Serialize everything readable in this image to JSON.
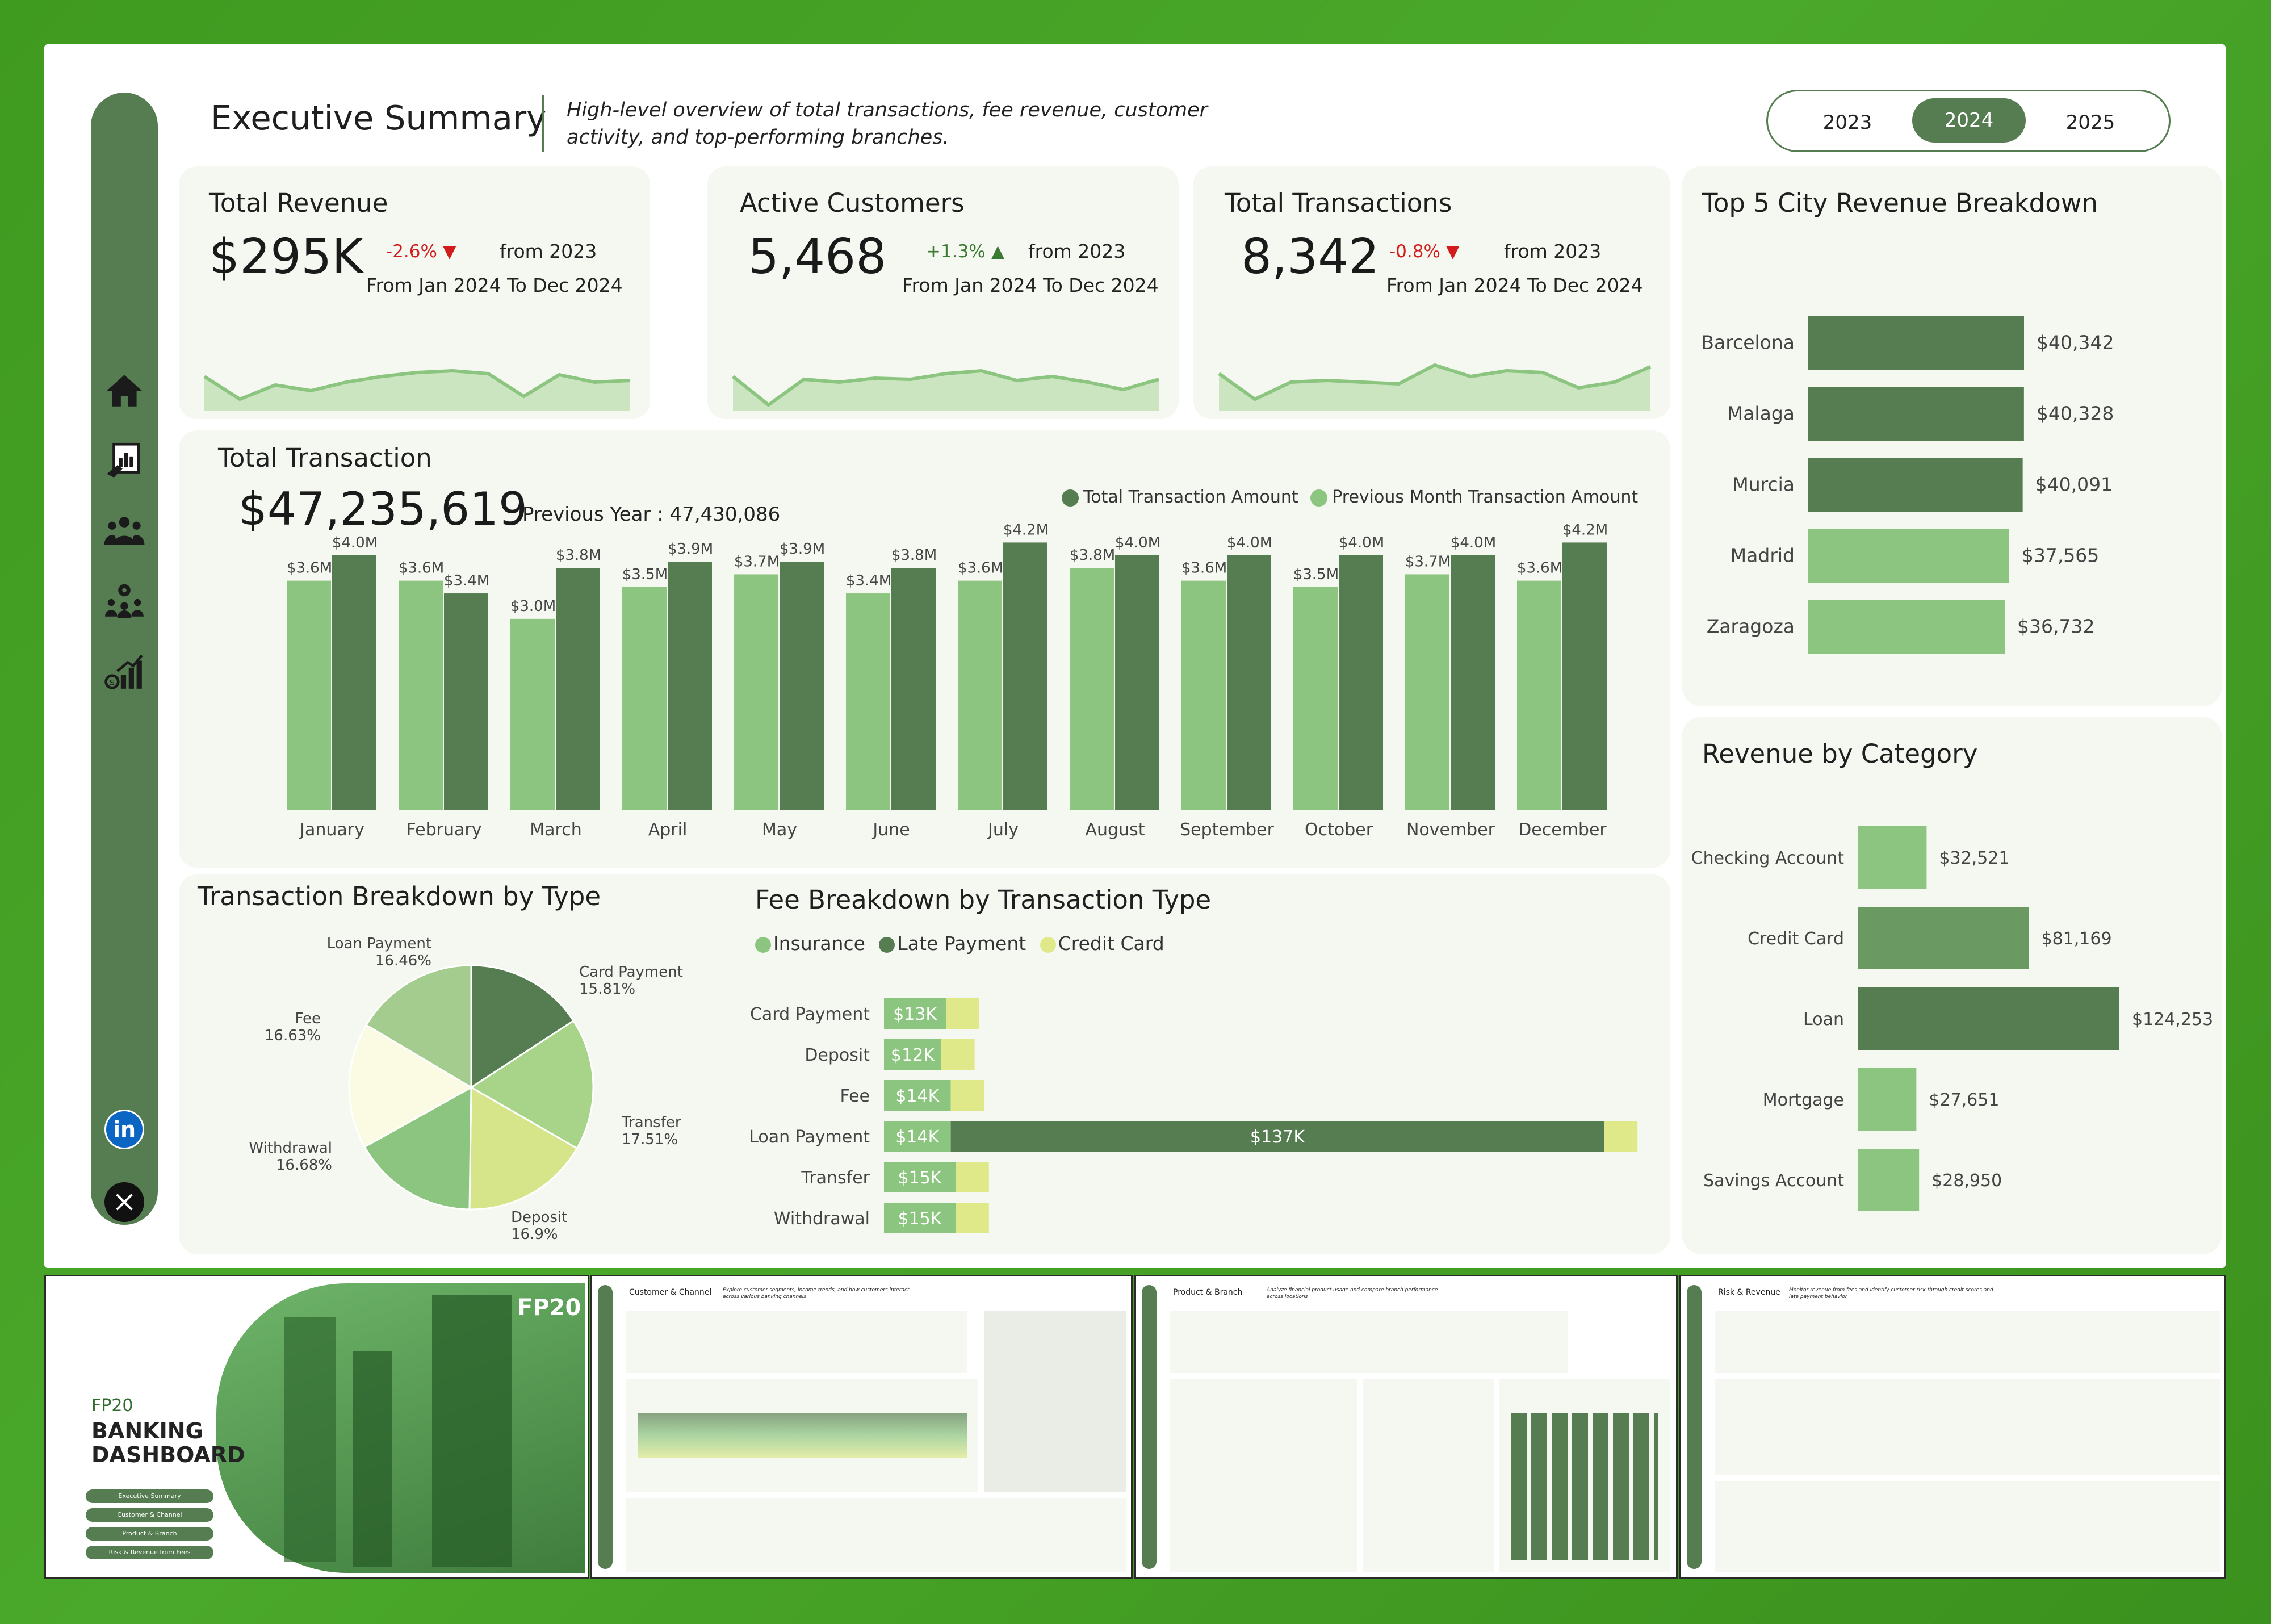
{
  "header": {
    "title": "Executive Summary",
    "subtitle": "High-level overview of total transactions, fee revenue, customer activity, and top-performing branches.",
    "years": [
      "2023",
      "2024",
      "2025"
    ],
    "selected_year": "2024"
  },
  "nav": [
    "home-icon",
    "report-icon",
    "customers-icon",
    "branches-icon",
    "risk-chart-icon",
    "linkedin-icon",
    "x-icon"
  ],
  "kpis": [
    {
      "title": "Total Revenue",
      "value": "$295K",
      "change": "-2.6%",
      "direction": "down",
      "from": "from 2023",
      "range": "From Jan 2024 To Dec 2024",
      "spark": [
        0.55,
        0.15,
        0.4,
        0.3,
        0.45,
        0.55,
        0.62,
        0.65,
        0.6,
        0.2,
        0.58,
        0.45,
        0.48
      ]
    },
    {
      "title": "Active Customers",
      "value": "5,468",
      "change": "+1.3%",
      "direction": "up",
      "from": "from 2023",
      "range": "From Jan 2024 To Dec 2024",
      "spark": [
        0.55,
        0.05,
        0.5,
        0.45,
        0.52,
        0.5,
        0.6,
        0.65,
        0.48,
        0.55,
        0.45,
        0.32,
        0.5
      ]
    },
    {
      "title": "Total Transactions",
      "value": "8,342",
      "change": "-0.8%",
      "direction": "down",
      "from": "from 2023",
      "range": "From Jan 2024 To Dec 2024",
      "spark": [
        0.6,
        0.15,
        0.45,
        0.48,
        0.45,
        0.42,
        0.75,
        0.55,
        0.65,
        0.62,
        0.35,
        0.45,
        0.72
      ]
    }
  ],
  "monthly": {
    "title": "Total Transaction",
    "total": "$47,235,619",
    "previous": "Previous Year : 47,430,086",
    "legend_current": "Total Transaction Amount",
    "legend_previous": "Previous Month Transaction Amount",
    "color_current": "#567d51",
    "color_previous": "#8cc57f"
  },
  "top_cities": {
    "title": "Top 5 City Revenue Breakdown"
  },
  "category": {
    "title": "Revenue by Category"
  },
  "type_breakdown": {
    "title": "Transaction Breakdown by Type"
  },
  "fee_breakdown": {
    "title": "Fee Breakdown by Transaction Type",
    "legend": [
      "Insurance",
      "Late Payment",
      "Credit Card"
    ],
    "colors": [
      "#8cc57f",
      "#567d51",
      "#dfe98a"
    ]
  },
  "thumbnails": {
    "cover": {
      "brand": "FP20",
      "title_1": "BANKING",
      "title_2": "DASHBOARD",
      "menu": [
        "Executive Summary",
        "Customer & Channel",
        "Product & Branch",
        "Risk & Revenue from Fees"
      ],
      "logo": "FP20"
    },
    "customer": {
      "title": "Customer & Channel",
      "subtitle": "Explore customer segments, income trends, and how customers interact across various banking channels"
    },
    "product": {
      "title": "Product & Branch",
      "subtitle": "Analyze financial product usage and compare branch performance across locations"
    },
    "risk": {
      "title": "Risk & Revenue",
      "subtitle": "Monitor revenue from fees and identify customer risk through credit scores and late payment behavior"
    }
  },
  "chart_data": [
    {
      "type": "bar",
      "categories": [
        "January",
        "February",
        "March",
        "April",
        "May",
        "June",
        "July",
        "August",
        "September",
        "October",
        "November",
        "December"
      ],
      "series": [
        {
          "name": "Previous Month Transaction Amount",
          "values": [
            3.6,
            3.6,
            3.0,
            3.5,
            3.7,
            3.4,
            3.6,
            3.8,
            3.6,
            3.5,
            3.7,
            3.6
          ],
          "labels": [
            "$3.6M",
            "$3.6M",
            "$3.0M",
            "$3.5M",
            "$3.7M",
            "$3.4M",
            "$3.6M",
            "$3.8M",
            "$3.6M",
            "$3.5M",
            "$3.7M",
            "$3.6M"
          ]
        },
        {
          "name": "Total Transaction Amount",
          "values": [
            4.0,
            3.4,
            3.8,
            3.9,
            3.9,
            3.8,
            4.2,
            4.0,
            4.0,
            4.0,
            4.0,
            4.2
          ],
          "labels": [
            "$4.0M",
            "$3.4M",
            "$3.8M",
            "$3.9M",
            "$3.9M",
            "$3.8M",
            "$4.2M",
            "$4.0M",
            "$4.0M",
            "$4.0M",
            "$4.0M",
            "$4.2M"
          ]
        }
      ],
      "ylim": [
        0,
        4.4
      ]
    },
    {
      "type": "bar",
      "orientation": "horizontal",
      "categories": [
        "Barcelona",
        "Malaga",
        "Murcia",
        "Madrid",
        "Zaragoza"
      ],
      "values": [
        40342,
        40328,
        40091,
        37565,
        36732
      ],
      "labels": [
        "$40,342",
        "$40,328",
        "$40,091",
        "$37,565",
        "$36,732"
      ],
      "colors": [
        "#567d51",
        "#567d51",
        "#567d51",
        "#8cc57f",
        "#8cc57f"
      ]
    },
    {
      "type": "bar",
      "orientation": "horizontal",
      "categories": [
        "Checking Account",
        "Credit Card",
        "Loan",
        "Mortgage",
        "Savings Account"
      ],
      "values": [
        32521,
        81169,
        124253,
        27651,
        28950
      ],
      "labels": [
        "$32,521",
        "$81,169",
        "$124,253",
        "$27,651",
        "$28,950"
      ],
      "colors": [
        "#8cc57f",
        "#6b9962",
        "#567d51",
        "#8cc57f",
        "#8cc57f"
      ]
    },
    {
      "type": "pie",
      "categories": [
        "Card Payment",
        "Transfer",
        "Deposit",
        "Withdrawal",
        "Fee",
        "Loan Payment"
      ],
      "values": [
        15.81,
        17.51,
        16.9,
        16.68,
        16.63,
        16.46
      ],
      "labels": [
        "15.81%",
        "17.51%",
        "16.9%",
        "16.68%",
        "16.63%",
        "16.46%"
      ],
      "colors": [
        "#567d51",
        "#a8d48a",
        "#d6e58a",
        "#8cc57f",
        "#fafbe2",
        "#a3cc8e"
      ]
    },
    {
      "type": "bar",
      "orientation": "horizontal",
      "stacked": true,
      "categories": [
        "Card Payment",
        "Deposit",
        "Fee",
        "Loan Payment",
        "Transfer",
        "Withdrawal"
      ],
      "series": [
        {
          "name": "Insurance",
          "values": [
            13,
            12,
            14,
            14,
            15,
            15
          ],
          "labels": [
            "$13K",
            "$12K",
            "$14K",
            "$14K",
            "$15K",
            "$15K"
          ]
        },
        {
          "name": "Late Payment",
          "values": [
            0,
            0,
            0,
            137,
            0,
            0
          ],
          "labels": [
            "",
            "",
            "",
            "$137K",
            "",
            ""
          ]
        },
        {
          "name": "Credit Card",
          "values": [
            7,
            7,
            7,
            7,
            7,
            7
          ],
          "labels": [
            "",
            "",
            "",
            "",
            "",
            ""
          ]
        }
      ]
    }
  ]
}
